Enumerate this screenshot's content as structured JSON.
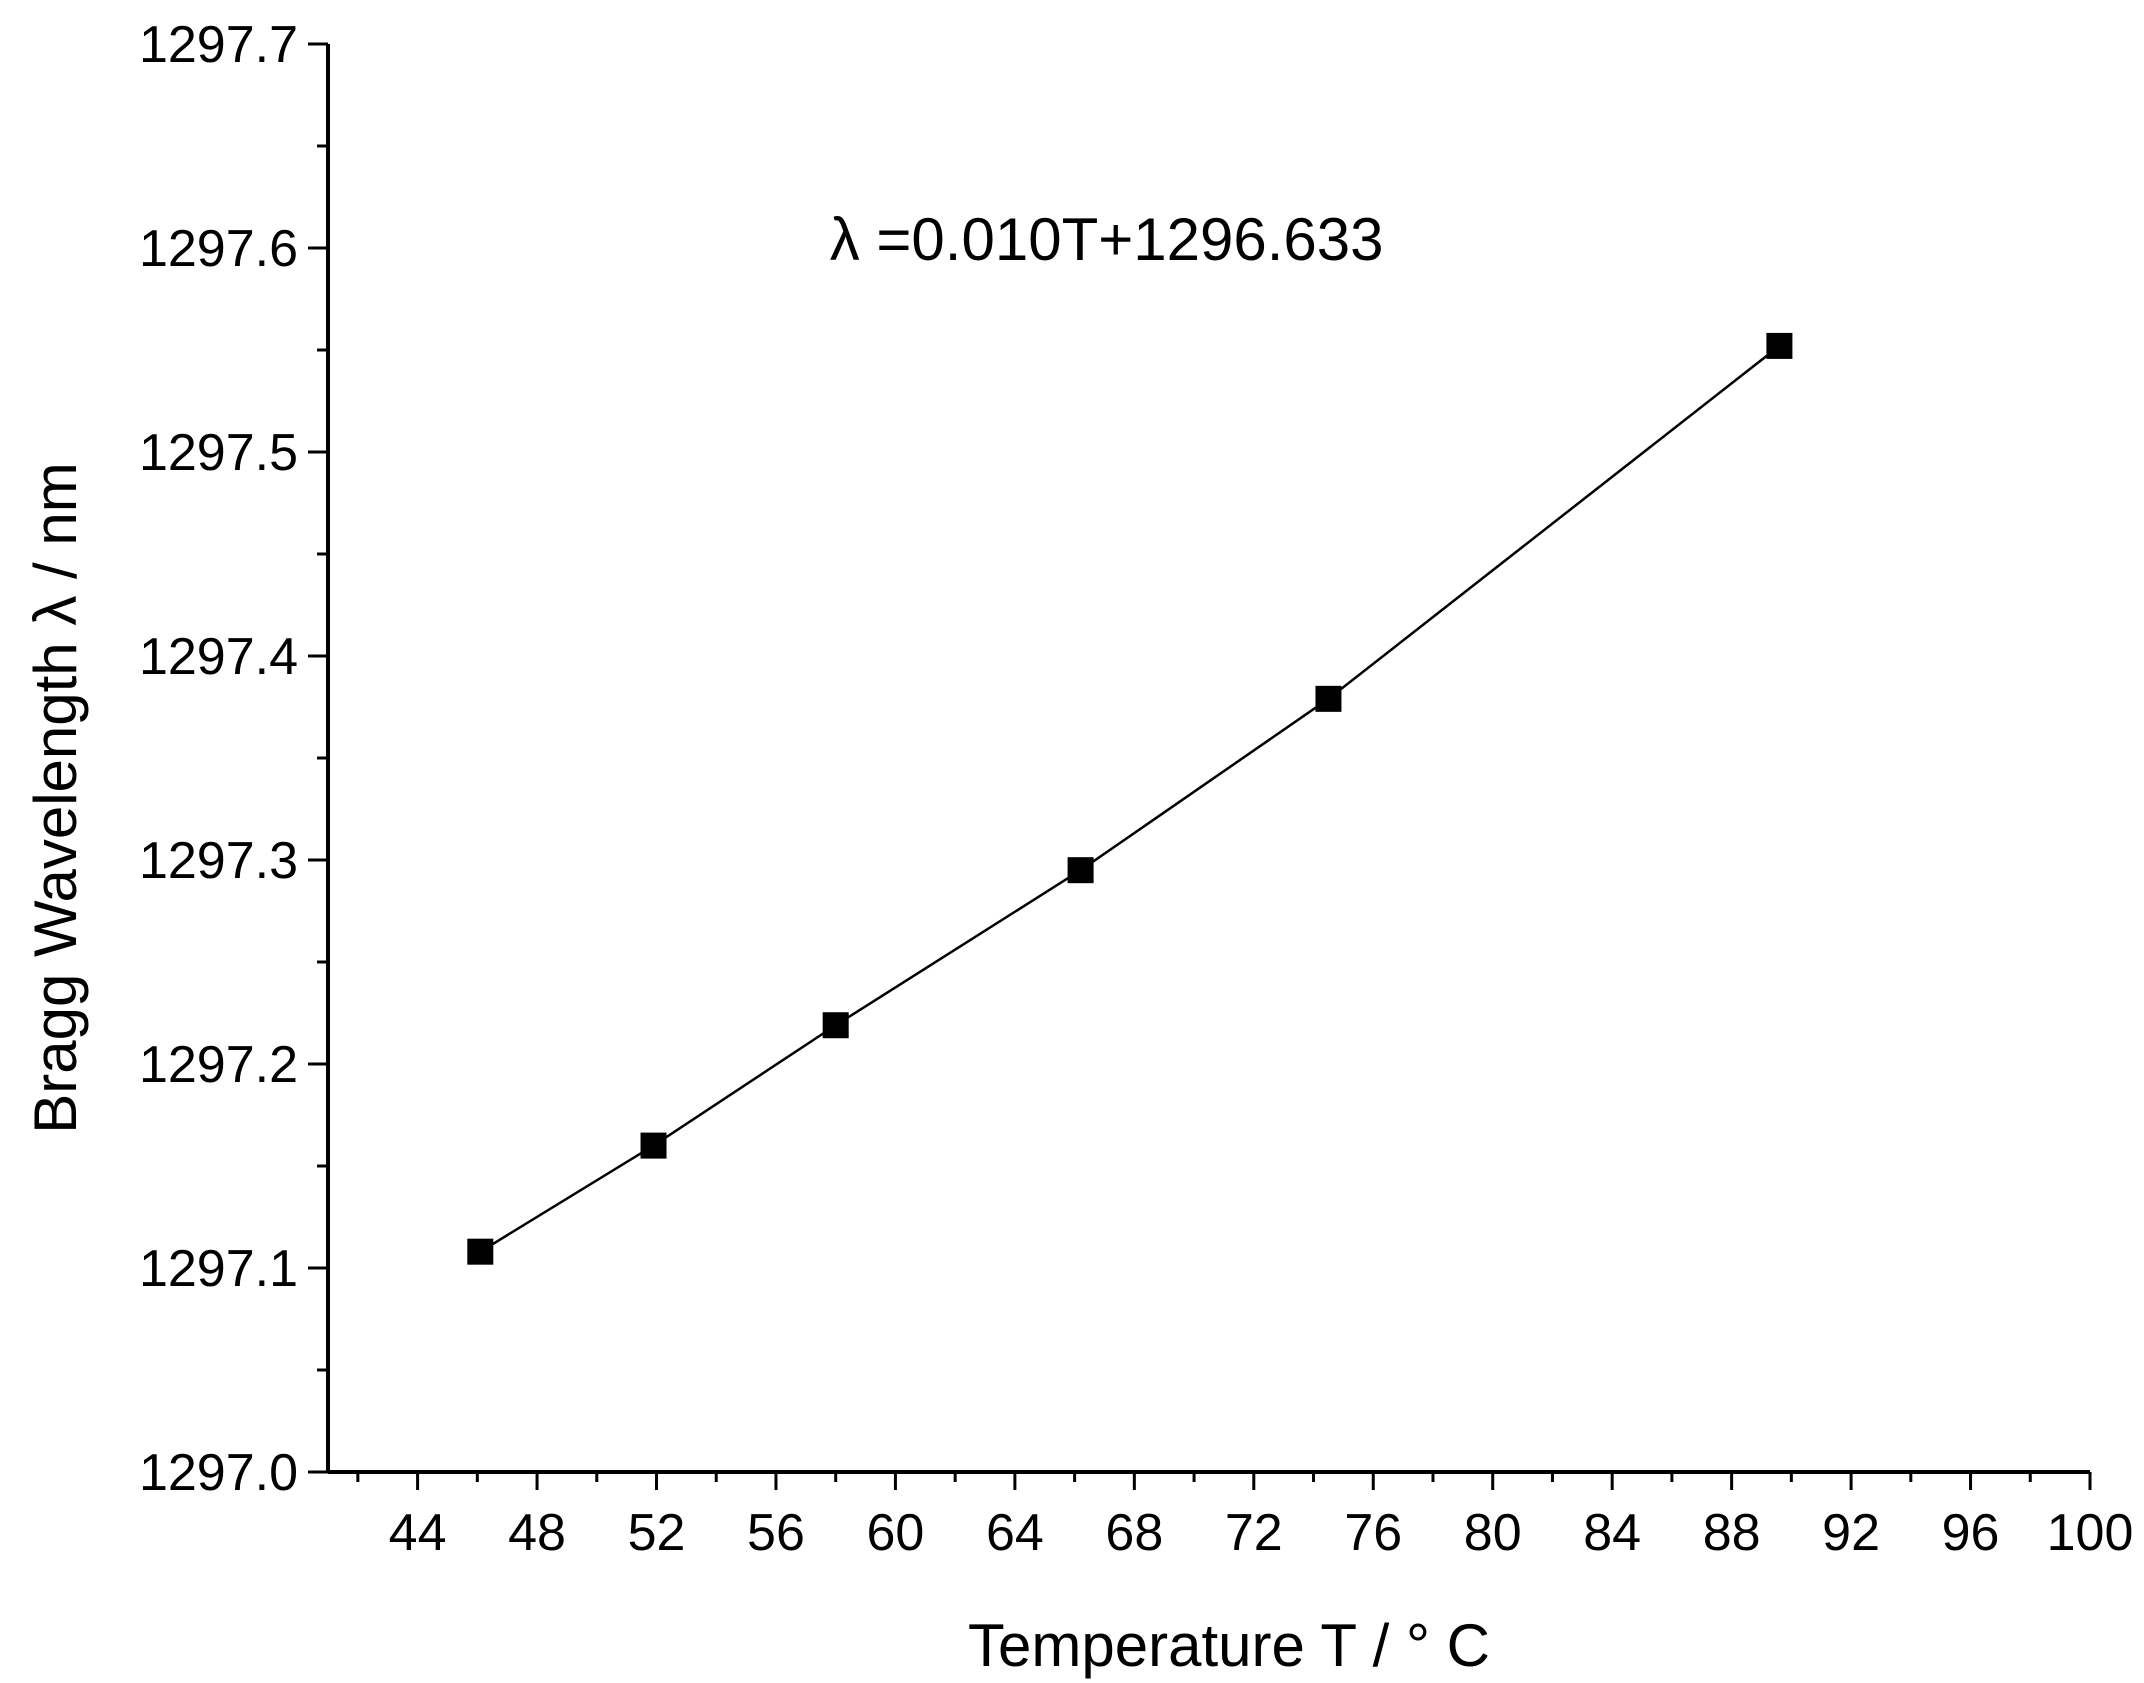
{
  "chart_data": {
    "type": "scatter",
    "title": "",
    "xlabel": "Temperature T / °  C",
    "ylabel": "Bragg Wavelength λ / nm",
    "xlim": [
      41,
      100
    ],
    "ylim": [
      1297.0,
      1297.7
    ],
    "x_ticks": [
      44,
      48,
      52,
      56,
      60,
      64,
      68,
      72,
      76,
      80,
      84,
      88,
      92,
      96,
      100
    ],
    "x_tick_labels": [
      "44",
      "48",
      "52",
      "56",
      "60",
      "64",
      "68",
      "72",
      "76",
      "80",
      "84",
      "88",
      "92",
      "96",
      "100"
    ],
    "y_ticks": [
      1297.0,
      1297.1,
      1297.2,
      1297.3,
      1297.4,
      1297.5,
      1297.6,
      1297.7
    ],
    "y_tick_labels": [
      "1297.0",
      "1297.1",
      "1297.2",
      "1297.3",
      "1297.4",
      "1297.5",
      "1297.6",
      "1297.7"
    ],
    "grid": false,
    "series": [
      {
        "x": [
          46.1,
          51.9,
          58.0,
          66.2,
          74.5,
          89.6
        ],
        "y": [
          1297.108,
          1297.16,
          1297.219,
          1297.295,
          1297.379,
          1297.552
        ],
        "marker": "square",
        "color": "#000000",
        "connect": true
      }
    ],
    "annotations": [
      {
        "text": "λ =0.010T+1296.633",
        "x": 57.8,
        "y": 1297.594
      }
    ]
  }
}
